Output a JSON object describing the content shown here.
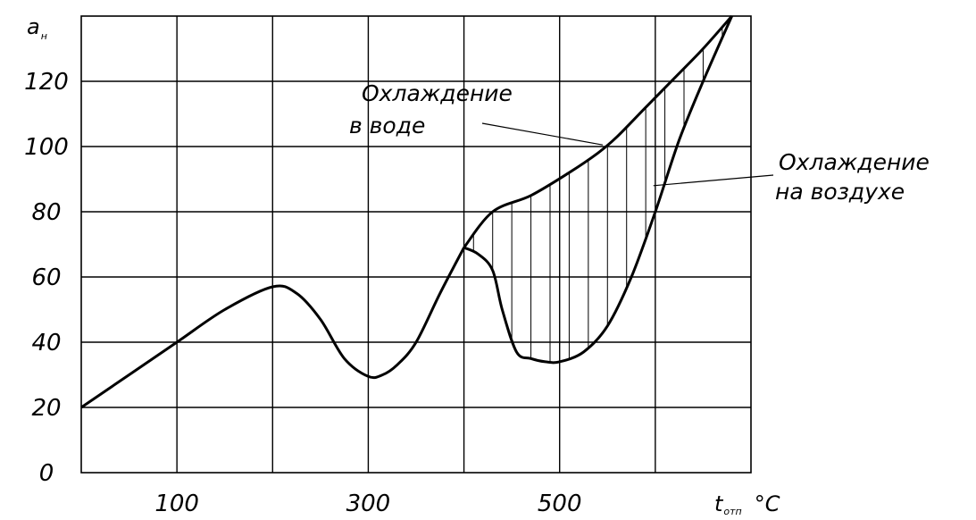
{
  "chart_data": {
    "type": "line",
    "y_axis_label": {
      "main": "a",
      "sub": "н"
    },
    "x_axis_label": {
      "main": "t",
      "sub": "отп",
      "unit": "°C"
    },
    "xlim": [
      0,
      680
    ],
    "ylim": [
      0,
      140
    ],
    "grid": true,
    "x_tick_values": [
      100,
      200,
      300,
      400,
      500,
      600
    ],
    "x_tick_labels": [
      "100",
      "300",
      "500"
    ],
    "y_ticks": [
      0,
      20,
      40,
      60,
      80,
      100,
      120
    ],
    "y_tick_labels": [
      "0",
      "20",
      "40",
      "60",
      "80",
      "100",
      "120"
    ],
    "shared_curve": {
      "x": [
        0,
        50,
        100,
        150,
        200,
        225,
        250,
        275,
        300,
        315,
        330,
        350,
        375,
        400
      ],
      "y": [
        20,
        30,
        40,
        50,
        57,
        55,
        47,
        35,
        29.5,
        30,
        33,
        40,
        55,
        69
      ]
    },
    "series": [
      {
        "name": "Охлаждение в воде",
        "x": [
          400,
          430,
          470,
          510,
          540,
          560,
          590,
          620,
          650,
          680
        ],
        "y": [
          69,
          80,
          85,
          92,
          98,
          103,
          112,
          121,
          130,
          140
        ]
      },
      {
        "name": "Охлаждение на воздухе",
        "x": [
          400,
          415,
          430,
          440,
          455,
          470,
          485,
          500,
          525,
          550,
          575,
          600,
          625,
          650,
          680
        ],
        "y": [
          69,
          67,
          62,
          50,
          37,
          35,
          34,
          34,
          37,
          45,
          60,
          80,
          102,
          120,
          140
        ]
      }
    ],
    "hatched_region": {
      "between": [
        "Охлаждение в воде",
        "Охлаждение на воздухе"
      ],
      "x_range": [
        400,
        680
      ]
    },
    "annotations": [
      {
        "lines": [
          "Охлаждение",
          "в воде"
        ],
        "points_to": "Охлаждение в воде"
      },
      {
        "lines": [
          "Охлаждение",
          "на воздухе"
        ],
        "points_to": "Охлаждение на воздухе"
      }
    ]
  }
}
